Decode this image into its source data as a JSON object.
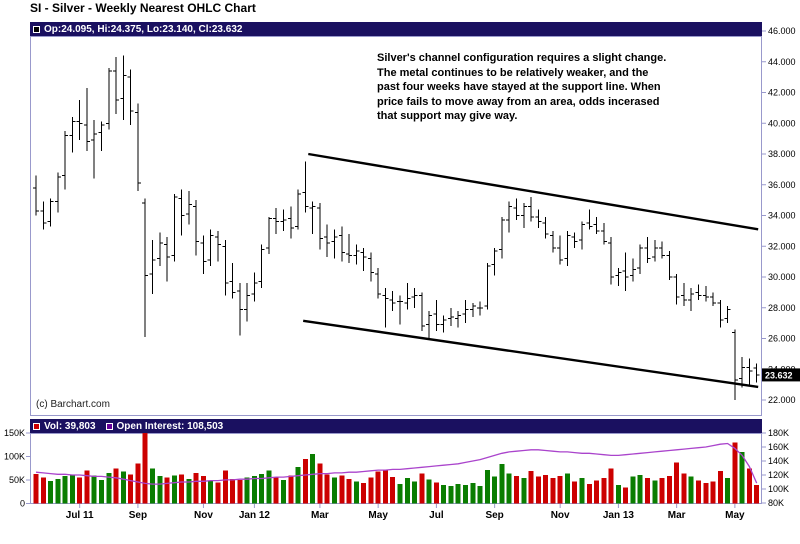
{
  "title": "SI - Silver - Weekly Nearest OHLC Chart",
  "price_quote": "Op:24.095, Hi:24.375, Lo:23.140, Cl:23.632",
  "volume_quote": "Vol: 39,803",
  "open_interest_quote": "Open Interest: 108,503",
  "annotation": "Silver's channel configuration requires a slight change.\nThe metal continues to be relatively weaker, and the\npast four weeks have stayed at the support line.  When\nprice fails to move away from an area, odds incerased\nthat support may give way.",
  "copyright": "(c) Barchart.com",
  "price_tag": "23.632",
  "colors": {
    "quote_bar_bg": "#1a1060",
    "frame_lavender": "#9999cc",
    "price_swatch": "#000000",
    "volume_swatch": "#cc0000",
    "oi_swatch": "#660099",
    "volume_up": "#0a7d00",
    "volume_down": "#cc0000",
    "oi_line": "#aa44cc",
    "tag_bg": "#000000",
    "tag_text": "#ffffff"
  },
  "chart_data": [
    {
      "type": "ohlc",
      "title": "SI - Silver - Weekly Nearest OHLC Chart",
      "period": "Weekly Nearest",
      "symbol": "SI",
      "ylim": [
        21.0,
        46.3
      ],
      "y_ticks": [
        46,
        44,
        42,
        40,
        38,
        36,
        34,
        32,
        30,
        28,
        26,
        24,
        22
      ],
      "grid": false,
      "legend_position": "top-left quote bar",
      "last": {
        "open": 24.095,
        "high": 24.375,
        "low": 23.14,
        "close": 23.632
      },
      "channel": {
        "upper": {
          "start_bar": 37.4,
          "start_price": 38.0,
          "end_bar": 99.2,
          "end_price": 33.1
        },
        "lower": {
          "start_bar": 36.7,
          "start_price": 27.15,
          "end_bar": 99.2,
          "end_price": 22.85
        }
      },
      "x_ticks": [
        {
          "label": "Jul 11",
          "bar": 6
        },
        {
          "label": "Sep",
          "bar": 14
        },
        {
          "label": "Nov",
          "bar": 23
        },
        {
          "label": "Jan 12",
          "bar": 30
        },
        {
          "label": "Mar",
          "bar": 39
        },
        {
          "label": "May",
          "bar": 47
        },
        {
          "label": "Jul",
          "bar": 55
        },
        {
          "label": "Sep",
          "bar": 63
        },
        {
          "label": "Nov",
          "bar": 72
        },
        {
          "label": "Jan 13",
          "bar": 80
        },
        {
          "label": "Mar",
          "bar": 88
        },
        {
          "label": "May",
          "bar": 96
        }
      ],
      "ohlc": [
        [
          35.8,
          36.6,
          34.0,
          34.3
        ],
        [
          34.3,
          34.9,
          33.1,
          33.5
        ],
        [
          33.6,
          35.1,
          33.3,
          34.9
        ],
        [
          34.9,
          36.8,
          34.2,
          36.5
        ],
        [
          36.6,
          39.5,
          35.7,
          39.2
        ],
        [
          39.2,
          40.4,
          38.1,
          40.1
        ],
        [
          40.1,
          41.5,
          38.9,
          40.0
        ],
        [
          39.9,
          42.3,
          38.2,
          38.8
        ],
        [
          38.9,
          40.2,
          36.4,
          39.3
        ],
        [
          39.4,
          40.1,
          38.2,
          39.9
        ],
        [
          40.0,
          43.6,
          39.6,
          43.4
        ],
        [
          43.4,
          44.3,
          40.6,
          41.5
        ],
        [
          41.6,
          44.4,
          40.2,
          43.1
        ],
        [
          43.0,
          43.5,
          39.9,
          40.8
        ],
        [
          40.7,
          41.3,
          35.6,
          36.1
        ],
        [
          34.8,
          35.1,
          26.1,
          30.1
        ],
        [
          30.2,
          32.4,
          28.9,
          31.1
        ],
        [
          31.2,
          32.9,
          30.7,
          32.2
        ],
        [
          32.1,
          32.6,
          29.7,
          31.3
        ],
        [
          31.4,
          35.4,
          31.0,
          35.2
        ],
        [
          35.1,
          35.7,
          32.7,
          34.0
        ],
        [
          34.1,
          35.6,
          33.4,
          34.7
        ],
        [
          34.6,
          35.0,
          31.4,
          32.3
        ],
        [
          32.2,
          32.7,
          30.2,
          31.0
        ],
        [
          31.1,
          33.1,
          30.7,
          32.7
        ],
        [
          32.6,
          33.0,
          31.0,
          32.1
        ],
        [
          32.0,
          32.4,
          28.8,
          29.6
        ],
        [
          29.7,
          30.9,
          28.6,
          29.0
        ],
        [
          29.1,
          29.6,
          26.2,
          27.9
        ],
        [
          27.9,
          29.6,
          27.1,
          28.8
        ],
        [
          28.9,
          30.3,
          28.4,
          29.6
        ],
        [
          29.7,
          32.1,
          29.3,
          31.8
        ],
        [
          31.9,
          33.9,
          31.5,
          33.8
        ],
        [
          33.8,
          34.5,
          32.8,
          33.6
        ],
        [
          33.6,
          34.4,
          33.0,
          33.7
        ],
        [
          33.8,
          34.6,
          32.5,
          33.2
        ],
        [
          33.3,
          35.7,
          33.1,
          35.4
        ],
        [
          35.5,
          37.5,
          34.2,
          34.6
        ],
        [
          34.5,
          34.9,
          32.8,
          34.6
        ],
        [
          34.5,
          34.8,
          31.8,
          32.5
        ],
        [
          32.6,
          33.4,
          31.3,
          32.2
        ],
        [
          32.3,
          33.1,
          31.2,
          32.6
        ],
        [
          32.7,
          33.3,
          31.0,
          31.6
        ],
        [
          31.5,
          32.8,
          30.9,
          31.4
        ],
        [
          31.4,
          32.1,
          30.8,
          31.7
        ],
        [
          31.6,
          31.9,
          30.4,
          31.3
        ],
        [
          31.2,
          31.6,
          29.7,
          30.3
        ],
        [
          30.2,
          30.6,
          28.6,
          28.9
        ],
        [
          28.8,
          29.3,
          26.7,
          28.6
        ],
        [
          28.5,
          29.1,
          27.8,
          28.3
        ],
        [
          28.4,
          28.8,
          26.9,
          28.4
        ],
        [
          28.3,
          29.6,
          27.9,
          28.6
        ],
        [
          28.7,
          29.3,
          28.0,
          28.8
        ],
        [
          28.8,
          29.0,
          26.5,
          26.8
        ],
        [
          26.9,
          27.8,
          26.0,
          27.5
        ],
        [
          27.6,
          28.5,
          26.5,
          26.9
        ],
        [
          26.9,
          27.5,
          26.4,
          27.2
        ],
        [
          27.3,
          28.0,
          26.8,
          27.4
        ],
        [
          27.3,
          27.8,
          26.7,
          27.5
        ],
        [
          27.6,
          28.5,
          27.0,
          27.9
        ],
        [
          27.9,
          28.3,
          27.4,
          28.1
        ],
        [
          28.0,
          28.4,
          27.5,
          28.0
        ],
        [
          28.1,
          30.9,
          27.9,
          30.7
        ],
        [
          30.8,
          31.9,
          30.1,
          31.7
        ],
        [
          31.8,
          33.9,
          31.2,
          33.7
        ],
        [
          33.7,
          34.9,
          32.9,
          34.6
        ],
        [
          34.5,
          35.1,
          33.7,
          34.0
        ],
        [
          34.0,
          34.8,
          33.2,
          34.6
        ],
        [
          34.6,
          35.2,
          33.6,
          33.9
        ],
        [
          33.9,
          34.4,
          33.2,
          33.6
        ],
        [
          33.5,
          33.9,
          32.5,
          32.8
        ],
        [
          32.7,
          33.0,
          31.6,
          31.9
        ],
        [
          31.9,
          32.7,
          30.8,
          31.1
        ],
        [
          31.2,
          33.0,
          30.7,
          32.7
        ],
        [
          32.6,
          32.9,
          31.9,
          32.3
        ],
        [
          32.4,
          33.6,
          31.8,
          33.4
        ],
        [
          33.5,
          34.4,
          33.1,
          33.3
        ],
        [
          33.4,
          33.9,
          32.8,
          33.0
        ],
        [
          33.0,
          33.5,
          32.1,
          32.3
        ],
        [
          32.2,
          32.6,
          29.5,
          30.0
        ],
        [
          30.1,
          30.6,
          29.4,
          30.3
        ],
        [
          30.4,
          31.6,
          29.1,
          30.0
        ],
        [
          30.1,
          31.2,
          29.7,
          30.5
        ],
        [
          30.6,
          32.1,
          30.2,
          31.9
        ],
        [
          31.9,
          32.6,
          30.9,
          31.2
        ],
        [
          31.3,
          32.4,
          31.0,
          31.9
        ],
        [
          31.9,
          32.3,
          31.2,
          31.4
        ],
        [
          31.4,
          31.7,
          29.8,
          30.0
        ],
        [
          30.0,
          30.2,
          28.2,
          28.7
        ],
        [
          28.8,
          29.6,
          28.1,
          28.5
        ],
        [
          28.5,
          29.3,
          27.8,
          28.9
        ],
        [
          29.0,
          29.5,
          28.5,
          28.8
        ],
        [
          28.8,
          29.4,
          28.4,
          28.7
        ],
        [
          28.7,
          29.0,
          28.1,
          28.3
        ],
        [
          28.3,
          28.5,
          26.7,
          27.2
        ],
        [
          27.3,
          28.1,
          27.0,
          27.9
        ],
        [
          26.4,
          26.6,
          22.0,
          23.3
        ],
        [
          23.4,
          24.8,
          22.8,
          24.1
        ],
        [
          24.1,
          24.7,
          23.0,
          23.9
        ],
        [
          24.095,
          24.375,
          23.14,
          23.632
        ]
      ]
    },
    {
      "type": "bar+line",
      "title": "Volume and Open Interest",
      "volume_last": 39803,
      "open_interest_last": 108503,
      "left_ticks_k": [
        150,
        100,
        50,
        0
      ],
      "right_ticks_k": [
        180,
        160,
        140,
        120,
        100,
        80
      ],
      "volume_k": [
        63,
        55,
        48,
        52,
        58,
        62,
        55,
        70,
        60,
        50,
        65,
        75,
        68,
        62,
        85,
        150,
        75,
        58,
        55,
        60,
        62,
        52,
        65,
        58,
        48,
        45,
        70,
        52,
        50,
        55,
        58,
        63,
        70,
        56,
        50,
        60,
        78,
        95,
        105,
        85,
        62,
        55,
        60,
        52,
        47,
        44,
        55,
        68,
        72,
        56,
        42,
        54,
        47,
        64,
        51,
        45,
        39,
        37,
        41,
        39,
        44,
        37,
        71,
        57,
        84,
        64,
        59,
        54,
        69,
        57,
        61,
        54,
        59,
        64,
        47,
        54,
        41,
        49,
        54,
        74,
        39,
        34,
        57,
        61,
        54,
        49,
        54,
        59,
        87,
        64,
        57,
        49,
        44,
        47,
        69,
        54,
        130,
        110,
        74,
        39.8
      ],
      "open_interest_k": [
        124,
        123,
        122,
        121,
        121,
        120,
        120,
        119,
        118,
        118,
        117,
        116,
        114,
        112,
        110,
        108,
        107,
        107,
        108,
        109,
        110,
        110,
        111,
        111,
        112,
        112,
        113,
        113,
        114,
        114,
        115,
        115,
        116,
        117,
        117,
        118,
        119,
        120,
        121,
        122,
        122,
        123,
        123,
        124,
        124,
        125,
        126,
        127,
        127,
        128,
        128,
        129,
        130,
        131,
        132,
        133,
        134,
        135,
        136,
        138,
        140,
        142,
        145,
        148,
        151,
        153,
        154,
        155,
        156,
        156,
        155,
        154,
        153,
        153,
        152,
        151,
        151,
        150,
        149,
        148,
        148,
        149,
        150,
        151,
        152,
        153,
        154,
        155,
        156,
        157,
        158,
        159,
        160,
        162,
        164,
        165,
        158,
        148,
        132,
        108.5
      ]
    }
  ]
}
